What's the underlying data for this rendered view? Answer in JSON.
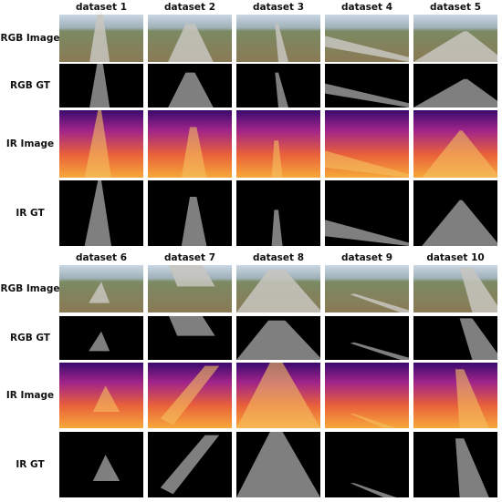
{
  "panels": [
    {
      "columns": [
        "dataset 1",
        "dataset 2",
        "dataset 3",
        "dataset 4",
        "dataset 5"
      ],
      "rows": [
        "RGB Image",
        "RGB GT",
        "IR Image",
        "IR GT"
      ]
    },
    {
      "columns": [
        "dataset 6",
        "dataset 7",
        "dataset 8",
        "dataset 9",
        "dataset 10"
      ],
      "rows": [
        "RGB Image",
        "RGB GT",
        "IR Image",
        "IR GT"
      ]
    }
  ]
}
